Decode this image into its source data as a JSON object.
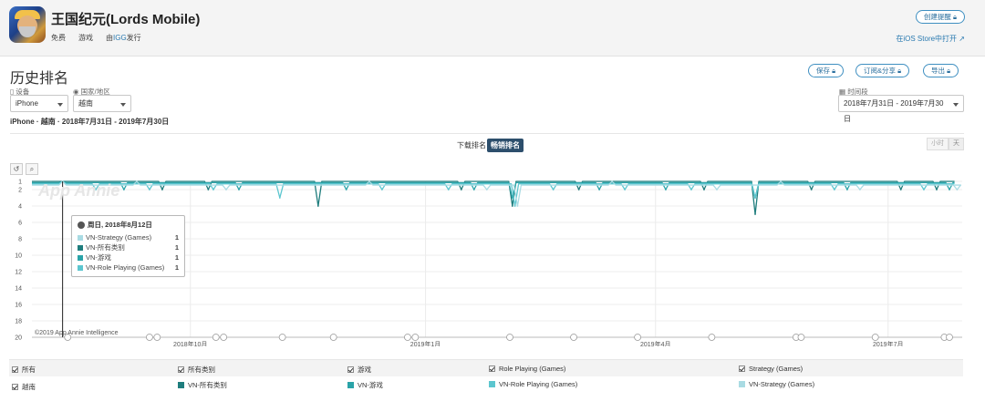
{
  "app": {
    "title": "王国纪元(Lords Mobile)",
    "price": "免费",
    "category": "游戏",
    "publisher_prefix": "由",
    "publisher": "IGG",
    "publisher_suffix": "发行",
    "create_alert": "创建提醒",
    "open_ios_store": "在iOS Store中打开"
  },
  "section": {
    "title": "历史排名",
    "save": "保存",
    "subscribe_share": "订阅&分享",
    "export": "导出"
  },
  "filters": {
    "device_label": "设备",
    "device_value": "iPhone",
    "country_label": "国家/地区",
    "country_value": "越南",
    "date_label": "时间段",
    "date_value": "2018年7月31日 - 2019年7月30日",
    "summary": "iPhone · 越南 · 2018年7月31日 - 2019年7月30日"
  },
  "chart_controls": {
    "download_rank": "下载排名",
    "grossing_rank": "畅销排名",
    "hourly": "小时",
    "daily": "天"
  },
  "tooltip": {
    "date": "周日, 2018年8月12日",
    "rows": [
      {
        "name": "VN-Strategy (Games)",
        "value": "1",
        "color": "#a9dbe3"
      },
      {
        "name": "VN-所有类别",
        "value": "1",
        "color": "#1f7d7d"
      },
      {
        "name": "VN-游戏",
        "value": "1",
        "color": "#2aa3a8"
      },
      {
        "name": "VN-Role Playing (Games)",
        "value": "1",
        "color": "#5cc6cf"
      }
    ]
  },
  "watermark": "App Annie",
  "copyright": "©2019 App Annie Intelligence",
  "legend": {
    "header": [
      "所有",
      "所有类别",
      "游戏",
      "Role Playing (Games)",
      "Strategy (Games)"
    ],
    "row": [
      "越南",
      "VN-所有类别",
      "VN-游戏",
      "VN-Role Playing (Games)",
      "VN-Strategy (Games)"
    ],
    "colors": [
      "#1f7d7d",
      "#2aa3a8",
      "#5cc6cf",
      "#a9dbe3"
    ]
  },
  "chart_data": {
    "type": "line",
    "x_range": [
      "2018-07-31",
      "2019-07-30"
    ],
    "x_ticks": [
      "2018年10月",
      "2019年1月",
      "2019年4月",
      "2019年7月"
    ],
    "y_ticks": [
      1,
      2,
      4,
      6,
      8,
      10,
      12,
      14,
      16,
      18,
      20
    ],
    "ylim": [
      20,
      1
    ],
    "y_reversed": true,
    "grid": true,
    "series": [
      {
        "name": "VN-所有类别",
        "color": "#1f7d7d",
        "x": [
          "2018-08-12",
          "2018-09-20",
          "2018-10-08",
          "2018-11-20",
          "2019-01-15",
          "2019-02-04",
          "2019-03-02",
          "2019-04-20",
          "2019-05-10",
          "2019-06-01",
          "2019-07-06",
          "2019-07-20"
        ],
        "y": [
          1,
          2,
          2,
          4,
          2,
          4,
          2,
          2,
          5,
          2,
          2,
          2
        ]
      },
      {
        "name": "VN-游戏",
        "color": "#2aa3a8",
        "x": [
          "2018-08-12",
          "2018-09-05",
          "2018-10-20",
          "2018-12-01",
          "2019-01-20",
          "2019-02-04",
          "2019-03-10",
          "2019-04-05",
          "2019-05-10",
          "2019-06-15",
          "2019-07-25"
        ],
        "y": [
          1,
          2,
          2,
          2,
          2,
          3,
          2,
          2,
          3,
          2,
          2
        ]
      },
      {
        "name": "VN-Role Playing (Games)",
        "color": "#5cc6cf",
        "x": [
          "2018-08-12",
          "2018-08-25",
          "2018-09-15",
          "2018-10-10",
          "2018-11-05",
          "2018-12-15",
          "2019-01-10",
          "2019-02-05",
          "2019-02-20",
          "2019-03-20",
          "2019-04-15",
          "2019-05-10",
          "2019-06-10",
          "2019-07-15"
        ],
        "y": [
          1,
          2,
          2,
          2,
          3,
          2,
          2,
          4,
          2,
          2,
          2,
          3,
          2,
          2
        ]
      },
      {
        "name": "VN-Strategy (Games)",
        "color": "#a9dbe3",
        "x": [
          "2018-08-12",
          "2018-09-10",
          "2018-10-15",
          "2018-12-10",
          "2019-01-25",
          "2019-02-06",
          "2019-03-15",
          "2019-04-25",
          "2019-05-20",
          "2019-06-20",
          "2019-07-28"
        ],
        "y": [
          1,
          1,
          2,
          1,
          2,
          4,
          1,
          2,
          1,
          2,
          2
        ]
      }
    ],
    "annotation_markers": [
      "2018-08-14",
      "2018-09-15",
      "2018-09-18",
      "2018-10-11",
      "2018-10-14",
      "2018-11-06",
      "2018-11-26",
      "2018-12-25",
      "2018-12-28",
      "2019-02-03",
      "2019-02-28",
      "2019-03-25",
      "2019-04-23",
      "2019-05-26",
      "2019-05-28",
      "2019-06-26",
      "2019-07-23",
      "2019-07-25"
    ]
  }
}
